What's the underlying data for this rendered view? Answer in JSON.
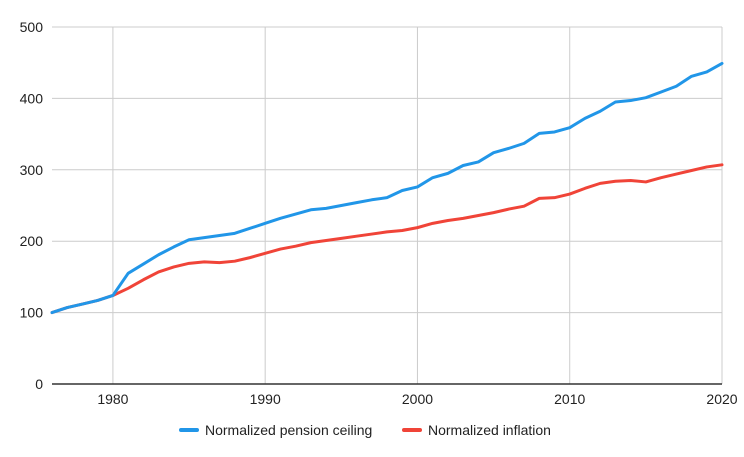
{
  "chart_data": {
    "type": "line",
    "title": "",
    "xlabel": "",
    "ylabel": "",
    "xlim": [
      1976,
      2020
    ],
    "ylim": [
      0,
      500
    ],
    "x_ticks": [
      1980,
      1990,
      2000,
      2010,
      2020
    ],
    "y_ticks": [
      0,
      100,
      200,
      300,
      400,
      500
    ],
    "grid": true,
    "legend_position": "bottom",
    "x": [
      1976,
      1977,
      1978,
      1979,
      1980,
      1981,
      1982,
      1983,
      1984,
      1985,
      1986,
      1987,
      1988,
      1989,
      1990,
      1991,
      1992,
      1993,
      1994,
      1995,
      1996,
      1997,
      1998,
      1999,
      2000,
      2001,
      2002,
      2003,
      2004,
      2005,
      2006,
      2007,
      2008,
      2009,
      2010,
      2011,
      2012,
      2013,
      2014,
      2015,
      2016,
      2017,
      2018,
      2019,
      2020
    ],
    "series": [
      {
        "name": "Normalized pension ceiling",
        "color": "#2196e8",
        "values": [
          100,
          107,
          112,
          117,
          124,
          155,
          168,
          181,
          192,
          202,
          205,
          208,
          211,
          218,
          225,
          232,
          238,
          244,
          246,
          250,
          254,
          258,
          261,
          271,
          276,
          289,
          295,
          306,
          311,
          324,
          330,
          337,
          351,
          353,
          359,
          372,
          382,
          395,
          397,
          401,
          409,
          417,
          431,
          437,
          449
        ]
      },
      {
        "name": "Normalized inflation",
        "color": "#f04438",
        "values": [
          100,
          107,
          112,
          117,
          124,
          134,
          146,
          157,
          164,
          169,
          171,
          170,
          172,
          177,
          183,
          189,
          193,
          198,
          201,
          204,
          207,
          210,
          213,
          215,
          219,
          225,
          229,
          232,
          236,
          240,
          245,
          249,
          260,
          261,
          266,
          274,
          281,
          284,
          285,
          283,
          289,
          294,
          299,
          304,
          307
        ]
      }
    ]
  }
}
